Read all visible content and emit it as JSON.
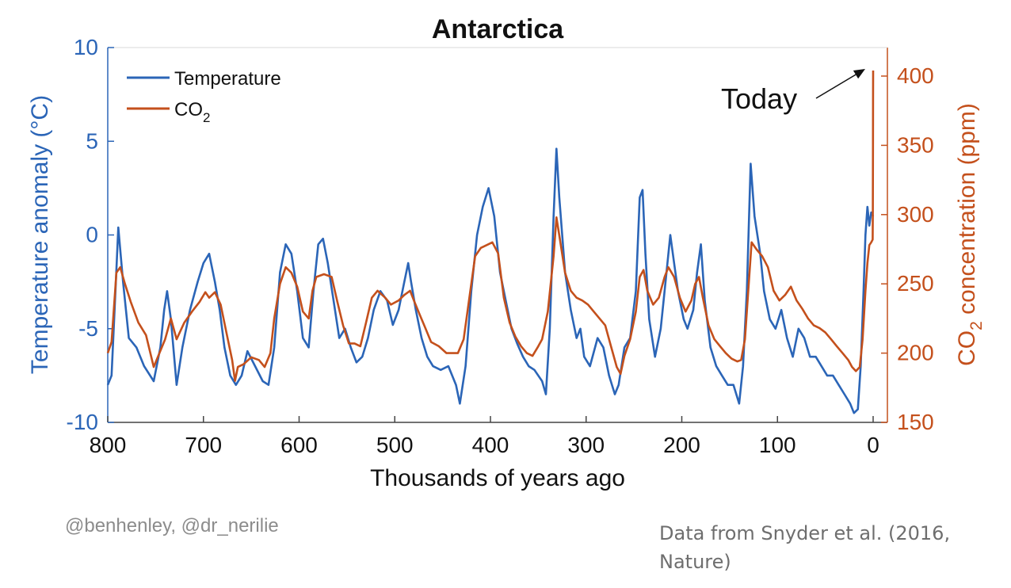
{
  "chart_data": {
    "type": "line",
    "title": "Antarctica",
    "xlabel": "Thousands of years ago",
    "xlim": [
      800,
      0
    ],
    "x_reversed": true,
    "x_ticks": [
      800,
      700,
      600,
      500,
      400,
      300,
      200,
      100,
      0
    ],
    "y_left": {
      "label_main": "Temperature anomaly (°C)",
      "lim": [
        -10,
        10
      ],
      "ticks": [
        10,
        5,
        0,
        -5,
        -10
      ],
      "color": "#2b65b7"
    },
    "y_right": {
      "label_prefix": "CO",
      "label_sub": "2",
      "label_suffix": " concentration (ppm)",
      "lim": [
        150,
        410
      ],
      "ticks": [
        400,
        350,
        300,
        250,
        200,
        150
      ],
      "color": "#c4501c"
    },
    "legend": {
      "position": "top-left",
      "temperature": "Temperature",
      "co2_main": "CO",
      "co2_sub": "2"
    },
    "annotation": {
      "text": "Today",
      "target_x": 0,
      "target_y": 404
    },
    "series": [
      {
        "name": "Temperature",
        "axis": "left",
        "color": "#2b65b7",
        "points": [
          [
            800,
            -8
          ],
          [
            796,
            -7.5
          ],
          [
            792,
            -3
          ],
          [
            789,
            0.4
          ],
          [
            784,
            -2.5
          ],
          [
            778,
            -5.5
          ],
          [
            770,
            -6
          ],
          [
            762,
            -7
          ],
          [
            752,
            -7.8
          ],
          [
            745,
            -6
          ],
          [
            741,
            -4
          ],
          [
            738,
            -3
          ],
          [
            734,
            -4.5
          ],
          [
            728,
            -8
          ],
          [
            722,
            -6
          ],
          [
            714,
            -4
          ],
          [
            706,
            -2.5
          ],
          [
            700,
            -1.5
          ],
          [
            694,
            -1
          ],
          [
            688,
            -2.5
          ],
          [
            683,
            -4
          ],
          [
            678,
            -6
          ],
          [
            672,
            -7.5
          ],
          [
            666,
            -8
          ],
          [
            660,
            -7.5
          ],
          [
            654,
            -6.2
          ],
          [
            646,
            -7
          ],
          [
            638,
            -7.8
          ],
          [
            632,
            -8
          ],
          [
            626,
            -6
          ],
          [
            620,
            -2
          ],
          [
            614,
            -0.5
          ],
          [
            608,
            -1
          ],
          [
            602,
            -3
          ],
          [
            596,
            -5.5
          ],
          [
            590,
            -6
          ],
          [
            585,
            -3
          ],
          [
            580,
            -0.5
          ],
          [
            575,
            -0.2
          ],
          [
            570,
            -1.5
          ],
          [
            564,
            -3.5
          ],
          [
            558,
            -5.5
          ],
          [
            552,
            -5
          ],
          [
            546,
            -6
          ],
          [
            540,
            -6.8
          ],
          [
            534,
            -6.5
          ],
          [
            528,
            -5.5
          ],
          [
            522,
            -4
          ],
          [
            515,
            -3
          ],
          [
            508,
            -3.5
          ],
          [
            502,
            -4.8
          ],
          [
            496,
            -4
          ],
          [
            490,
            -2.5
          ],
          [
            486,
            -1.5
          ],
          [
            483,
            -2.5
          ],
          [
            478,
            -4
          ],
          [
            472,
            -5.5
          ],
          [
            466,
            -6.5
          ],
          [
            460,
            -7
          ],
          [
            452,
            -7.2
          ],
          [
            444,
            -7
          ],
          [
            436,
            -8
          ],
          [
            432,
            -9
          ],
          [
            426,
            -7
          ],
          [
            420,
            -3
          ],
          [
            414,
            0
          ],
          [
            408,
            1.5
          ],
          [
            402,
            2.5
          ],
          [
            396,
            1
          ],
          [
            390,
            -2
          ],
          [
            384,
            -3.5
          ],
          [
            378,
            -5
          ],
          [
            372,
            -5.8
          ],
          [
            366,
            -6.5
          ],
          [
            360,
            -7
          ],
          [
            354,
            -7.2
          ],
          [
            346,
            -7.8
          ],
          [
            342,
            -8.5
          ],
          [
            338,
            -5
          ],
          [
            334,
            1
          ],
          [
            331,
            4.6
          ],
          [
            328,
            2
          ],
          [
            322,
            -2
          ],
          [
            316,
            -4
          ],
          [
            310,
            -5.5
          ],
          [
            306,
            -5
          ],
          [
            302,
            -6.5
          ],
          [
            296,
            -7
          ],
          [
            288,
            -5.5
          ],
          [
            282,
            -6
          ],
          [
            276,
            -7.5
          ],
          [
            270,
            -8.5
          ],
          [
            266,
            -8
          ],
          [
            260,
            -6
          ],
          [
            254,
            -5.5
          ],
          [
            248,
            -3
          ],
          [
            244,
            2
          ],
          [
            241,
            2.4
          ],
          [
            238,
            -1
          ],
          [
            234,
            -4.5
          ],
          [
            228,
            -6.5
          ],
          [
            222,
            -5
          ],
          [
            216,
            -2
          ],
          [
            212,
            0
          ],
          [
            208,
            -1.5
          ],
          [
            204,
            -3
          ],
          [
            198,
            -4.5
          ],
          [
            194,
            -5
          ],
          [
            188,
            -4
          ],
          [
            184,
            -2
          ],
          [
            180,
            -0.5
          ],
          [
            176,
            -3.5
          ],
          [
            170,
            -6
          ],
          [
            164,
            -7
          ],
          [
            158,
            -7.5
          ],
          [
            152,
            -8
          ],
          [
            146,
            -8
          ],
          [
            140,
            -9
          ],
          [
            136,
            -7
          ],
          [
            132,
            -3
          ],
          [
            128,
            3.8
          ],
          [
            124,
            1
          ],
          [
            118,
            -1
          ],
          [
            114,
            -3
          ],
          [
            108,
            -4.5
          ],
          [
            102,
            -5
          ],
          [
            96,
            -4
          ],
          [
            90,
            -5.5
          ],
          [
            84,
            -6.5
          ],
          [
            78,
            -5
          ],
          [
            72,
            -5.5
          ],
          [
            66,
            -6.5
          ],
          [
            60,
            -6.5
          ],
          [
            54,
            -7
          ],
          [
            48,
            -7.5
          ],
          [
            42,
            -7.5
          ],
          [
            36,
            -8
          ],
          [
            30,
            -8.5
          ],
          [
            24,
            -9
          ],
          [
            20,
            -9.5
          ],
          [
            16,
            -9.3
          ],
          [
            13,
            -7
          ],
          [
            10,
            -3
          ],
          [
            8,
            0
          ],
          [
            6,
            1.5
          ],
          [
            4,
            0.5
          ],
          [
            2,
            1.2
          ],
          [
            0,
            1
          ]
        ]
      },
      {
        "name": "CO₂",
        "axis": "right",
        "color": "#c4501c",
        "points": [
          [
            800,
            200
          ],
          [
            796,
            208
          ],
          [
            791,
            258
          ],
          [
            787,
            262
          ],
          [
            782,
            250
          ],
          [
            776,
            237
          ],
          [
            768,
            222
          ],
          [
            760,
            213
          ],
          [
            752,
            190
          ],
          [
            746,
            200
          ],
          [
            740,
            210
          ],
          [
            734,
            225
          ],
          [
            728,
            210
          ],
          [
            720,
            222
          ],
          [
            712,
            230
          ],
          [
            704,
            237
          ],
          [
            698,
            244
          ],
          [
            694,
            240
          ],
          [
            688,
            244
          ],
          [
            682,
            235
          ],
          [
            676,
            215
          ],
          [
            670,
            195
          ],
          [
            667,
            180
          ],
          [
            664,
            190
          ],
          [
            658,
            192
          ],
          [
            650,
            197
          ],
          [
            642,
            195
          ],
          [
            636,
            190
          ],
          [
            630,
            200
          ],
          [
            626,
            225
          ],
          [
            620,
            250
          ],
          [
            614,
            262
          ],
          [
            608,
            258
          ],
          [
            602,
            248
          ],
          [
            596,
            230
          ],
          [
            590,
            225
          ],
          [
            586,
            245
          ],
          [
            582,
            255
          ],
          [
            574,
            257
          ],
          [
            566,
            255
          ],
          [
            560,
            237
          ],
          [
            554,
            220
          ],
          [
            548,
            207
          ],
          [
            542,
            207
          ],
          [
            536,
            205
          ],
          [
            530,
            222
          ],
          [
            524,
            240
          ],
          [
            518,
            245
          ],
          [
            510,
            240
          ],
          [
            504,
            235
          ],
          [
            496,
            238
          ],
          [
            490,
            242
          ],
          [
            484,
            245
          ],
          [
            480,
            238
          ],
          [
            474,
            228
          ],
          [
            468,
            218
          ],
          [
            462,
            208
          ],
          [
            454,
            205
          ],
          [
            446,
            200
          ],
          [
            440,
            200
          ],
          [
            434,
            200
          ],
          [
            428,
            210
          ],
          [
            422,
            240
          ],
          [
            416,
            270
          ],
          [
            410,
            276
          ],
          [
            404,
            278
          ],
          [
            398,
            280
          ],
          [
            392,
            272
          ],
          [
            386,
            240
          ],
          [
            380,
            222
          ],
          [
            374,
            212
          ],
          [
            368,
            205
          ],
          [
            362,
            200
          ],
          [
            356,
            198
          ],
          [
            350,
            205
          ],
          [
            346,
            210
          ],
          [
            340,
            230
          ],
          [
            334,
            270
          ],
          [
            331,
            298
          ],
          [
            328,
            285
          ],
          [
            322,
            258
          ],
          [
            316,
            245
          ],
          [
            310,
            240
          ],
          [
            304,
            238
          ],
          [
            298,
            235
          ],
          [
            292,
            230
          ],
          [
            286,
            225
          ],
          [
            280,
            220
          ],
          [
            274,
            205
          ],
          [
            268,
            190
          ],
          [
            264,
            185
          ],
          [
            260,
            198
          ],
          [
            254,
            210
          ],
          [
            248,
            230
          ],
          [
            244,
            255
          ],
          [
            240,
            260
          ],
          [
            236,
            245
          ],
          [
            230,
            235
          ],
          [
            224,
            240
          ],
          [
            218,
            255
          ],
          [
            214,
            262
          ],
          [
            208,
            255
          ],
          [
            202,
            240
          ],
          [
            196,
            230
          ],
          [
            190,
            238
          ],
          [
            186,
            250
          ],
          [
            182,
            255
          ],
          [
            178,
            240
          ],
          [
            172,
            220
          ],
          [
            166,
            210
          ],
          [
            160,
            205
          ],
          [
            154,
            200
          ],
          [
            148,
            196
          ],
          [
            142,
            194
          ],
          [
            138,
            195
          ],
          [
            134,
            210
          ],
          [
            130,
            250
          ],
          [
            127,
            280
          ],
          [
            122,
            275
          ],
          [
            116,
            270
          ],
          [
            110,
            262
          ],
          [
            104,
            245
          ],
          [
            98,
            238
          ],
          [
            92,
            242
          ],
          [
            86,
            248
          ],
          [
            80,
            238
          ],
          [
            74,
            232
          ],
          [
            68,
            225
          ],
          [
            62,
            220
          ],
          [
            56,
            218
          ],
          [
            50,
            215
          ],
          [
            44,
            210
          ],
          [
            38,
            205
          ],
          [
            32,
            200
          ],
          [
            26,
            195
          ],
          [
            22,
            190
          ],
          [
            18,
            187
          ],
          [
            14,
            190
          ],
          [
            11,
            210
          ],
          [
            8,
            245
          ],
          [
            6,
            265
          ],
          [
            4,
            278
          ],
          [
            2,
            280
          ],
          [
            0.5,
            282
          ],
          [
            0.3,
            300
          ],
          [
            0.2,
            350
          ],
          [
            0.1,
            385
          ],
          [
            0,
            404
          ]
        ]
      }
    ]
  },
  "footer": {
    "credit": "@benhenley, @dr_nerilie",
    "source": "Data from Snyder et al. (2016, Nature)"
  }
}
